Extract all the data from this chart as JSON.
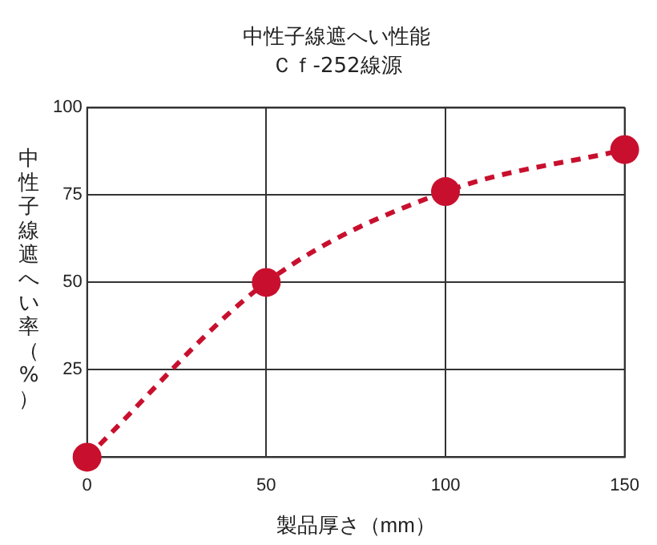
{
  "chart_data": {
    "type": "line",
    "title": "中性子線遮へい性能",
    "subtitle": "Ｃｆ-252線源",
    "xlabel": "製品厚さ（mm）",
    "ylabel": "中性子線遮へい率（%）",
    "x": [
      0,
      50,
      100,
      150
    ],
    "series": [
      {
        "color": "#c8102e",
        "values": [
          0,
          50,
          76,
          88
        ]
      }
    ],
    "xlim": [
      0,
      150
    ],
    "xticks": [
      0,
      50,
      100,
      150
    ],
    "ylim": [
      0,
      100
    ],
    "yticks": [
      0,
      25,
      50,
      75,
      100
    ],
    "grid": true,
    "legend": false,
    "marker": "circle",
    "line_style": "dashed"
  }
}
